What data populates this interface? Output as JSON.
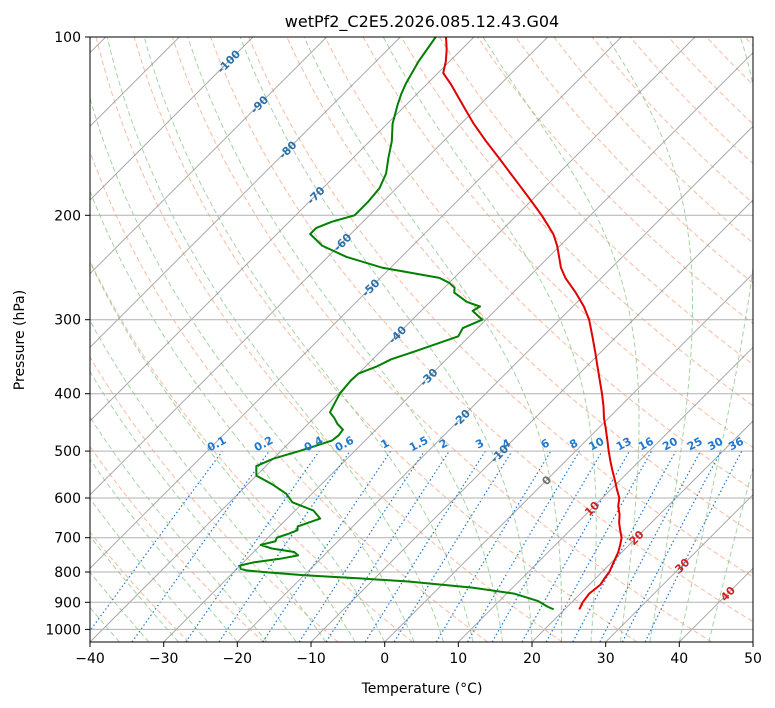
{
  "chart_data": {
    "type": "line",
    "title": "wetPf2_C2E5.2026.085.12.43.G04",
    "xlabel": "Temperature (°C)",
    "ylabel": "Pressure (hPa)",
    "xlim": [
      -40,
      50
    ],
    "ylim": [
      1050,
      100
    ],
    "y_scale": "log",
    "grid": true,
    "x_ticks": [
      -40,
      -30,
      -20,
      -10,
      0,
      10,
      20,
      30,
      40,
      50
    ],
    "y_ticks": [
      100,
      200,
      300,
      400,
      500,
      600,
      700,
      800,
      900,
      1000
    ],
    "colors": {
      "temperature": "#e00000",
      "dewpoint": "#008000",
      "dry_adiabat": "#f4a582",
      "moist_adiabat": "#80c080",
      "mixing_ratio": "#1f78d0",
      "isotherm": "#8c8c8c",
      "isotherm_label_cold": "#2a6fa8",
      "isotherm_label_warm": "#d02020",
      "zero_label": "#707070"
    },
    "series": [
      {
        "key": "temperature",
        "p": [
          925,
          900,
          870,
          840,
          820,
          800,
          780,
          760,
          740,
          720,
          700,
          680,
          660,
          640,
          620,
          600,
          580,
          560,
          540,
          520,
          500,
          480,
          460,
          440,
          420,
          400,
          380,
          360,
          340,
          320,
          300,
          285,
          270,
          255,
          245,
          235,
          225,
          215,
          205,
          200,
          190,
          180,
          170,
          160,
          150,
          140,
          130,
          120,
          115,
          110,
          105,
          100
        ],
        "t": [
          22,
          21.5,
          21.2,
          21.5,
          21.2,
          21.0,
          20.5,
          20.0,
          19.5,
          18.8,
          18.0,
          16.8,
          15.6,
          14.6,
          13.3,
          12.3,
          10.8,
          9.3,
          7.7,
          6.1,
          4.5,
          2.9,
          1.2,
          -0.6,
          -2.3,
          -4.2,
          -6.3,
          -8.5,
          -10.8,
          -13.3,
          -16.0,
          -18.5,
          -21.5,
          -24.9,
          -26.9,
          -28.6,
          -30.4,
          -32.5,
          -35.2,
          -36.6,
          -39.7,
          -43.0,
          -46.5,
          -50.2,
          -54.2,
          -58.3,
          -62.4,
          -66.8,
          -69.3,
          -70.5,
          -72.0,
          -73.8
        ]
      },
      {
        "key": "dewpoint",
        "p": [
          925,
          915,
          895,
          870,
          850,
          830,
          820,
          810,
          800,
          795,
          790,
          780,
          770,
          760,
          750,
          740,
          730,
          720,
          710,
          700,
          690,
          680,
          670,
          650,
          630,
          610,
          590,
          570,
          550,
          530,
          515,
          500,
          480,
          470,
          460,
          450,
          440,
          430,
          420,
          400,
          380,
          370,
          360,
          350,
          340,
          320,
          310,
          300,
          290,
          285,
          280,
          270,
          265,
          260,
          255,
          245,
          235,
          225,
          215,
          210,
          205,
          200,
          190,
          180,
          170,
          160,
          150,
          140,
          130,
          125,
          120,
          110,
          100
        ],
        "t": [
          18.5,
          17.3,
          15.2,
          11.0,
          4.5,
          -5.0,
          -12.0,
          -20.0,
          -26.0,
          -28.5,
          -29.5,
          -30.0,
          -28.5,
          -25.5,
          -23.5,
          -24.5,
          -28.0,
          -30.0,
          -28.5,
          -28.8,
          -27.8,
          -27.0,
          -27.5,
          -25.5,
          -27.5,
          -31.5,
          -33.5,
          -36.5,
          -40.0,
          -41.3,
          -40.0,
          -37.5,
          -34.5,
          -34.3,
          -34.5,
          -36.0,
          -37.2,
          -38.6,
          -39.0,
          -39.8,
          -40.1,
          -40.0,
          -38.5,
          -37.5,
          -35.5,
          -31.5,
          -32.0,
          -30.5,
          -33.0,
          -32.6,
          -35.0,
          -38.0,
          -38.6,
          -40.0,
          -42.0,
          -51.2,
          -57.5,
          -62.3,
          -65.5,
          -65.5,
          -64.2,
          -62.0,
          -62.0,
          -62.3,
          -63.4,
          -65.2,
          -67.0,
          -69.3,
          -71.2,
          -72.1,
          -72.9,
          -74.2,
          -75.2
        ]
      }
    ],
    "mixing_ratio_labels": [
      "0.1",
      "0.2",
      "0.4",
      "0.6",
      "1",
      "1.5",
      "2",
      "3",
      "4",
      "6",
      "8",
      "10",
      "13",
      "16",
      "20",
      "25",
      "30",
      "36"
    ],
    "isotherm_labels": [
      "-100",
      "-90",
      "-80",
      "-70",
      "-60",
      "-50",
      "-40",
      "-30",
      "-20",
      "-10",
      "0",
      "10",
      "20",
      "30",
      "40"
    ]
  }
}
